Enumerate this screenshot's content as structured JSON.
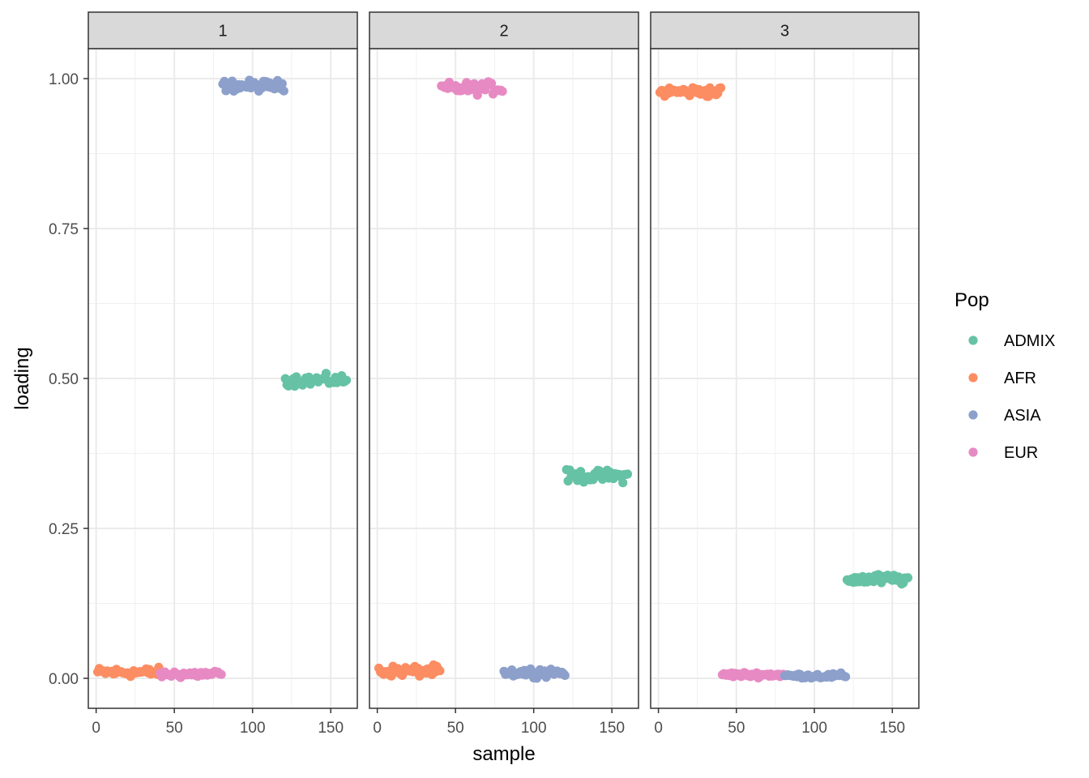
{
  "chart_data": {
    "type": "scatter",
    "xlabel": "sample",
    "ylabel": "loading",
    "xlim": [
      -5,
      167
    ],
    "ylim": [
      -0.05,
      1.05
    ],
    "x_ticks": [
      0,
      50,
      100,
      150
    ],
    "x_tick_labels": [
      "0",
      "50",
      "100",
      "150"
    ],
    "y_ticks": [
      0,
      0.25,
      0.5,
      0.75,
      1.0
    ],
    "y_tick_labels": [
      "0.00",
      "0.25",
      "0.50",
      "0.75",
      "1.00"
    ],
    "grid": true,
    "legend": {
      "title": "Pop",
      "position": "right",
      "entries": [
        {
          "name": "ADMIX",
          "color": "#66C2A5"
        },
        {
          "name": "AFR",
          "color": "#FC8D62"
        },
        {
          "name": "ASIA",
          "color": "#8DA0CB"
        },
        {
          "name": "EUR",
          "color": "#E78AC3"
        }
      ]
    },
    "panels": [
      {
        "label": "1",
        "groups": [
          {
            "pop": "AFR",
            "x_range": [
              1,
              40
            ],
            "mean": 0.01,
            "spread": 0.007
          },
          {
            "pop": "EUR",
            "x_range": [
              41,
              80
            ],
            "mean": 0.007,
            "spread": 0.006
          },
          {
            "pop": "ASIA",
            "x_range": [
              81,
              120
            ],
            "mean": 0.988,
            "spread": 0.008
          },
          {
            "pop": "ADMIX",
            "x_range": [
              121,
              160
            ],
            "mean": 0.497,
            "spread": 0.008
          }
        ]
      },
      {
        "label": "2",
        "groups": [
          {
            "pop": "AFR",
            "x_range": [
              1,
              40
            ],
            "mean": 0.012,
            "spread": 0.008
          },
          {
            "pop": "EUR",
            "x_range": [
              41,
              80
            ],
            "mean": 0.984,
            "spread": 0.009
          },
          {
            "pop": "ASIA",
            "x_range": [
              81,
              120
            ],
            "mean": 0.01,
            "spread": 0.007
          },
          {
            "pop": "ADMIX",
            "x_range": [
              121,
              160
            ],
            "mean": 0.337,
            "spread": 0.009
          }
        ]
      },
      {
        "label": "3",
        "groups": [
          {
            "pop": "AFR",
            "x_range": [
              1,
              40
            ],
            "mean": 0.978,
            "spread": 0.008
          },
          {
            "pop": "EUR",
            "x_range": [
              41,
              80
            ],
            "mean": 0.006,
            "spread": 0.004
          },
          {
            "pop": "ASIA",
            "x_range": [
              81,
              120
            ],
            "mean": 0.004,
            "spread": 0.004
          },
          {
            "pop": "ADMIX",
            "x_range": [
              121,
              160
            ],
            "mean": 0.165,
            "spread": 0.008
          }
        ]
      }
    ]
  }
}
